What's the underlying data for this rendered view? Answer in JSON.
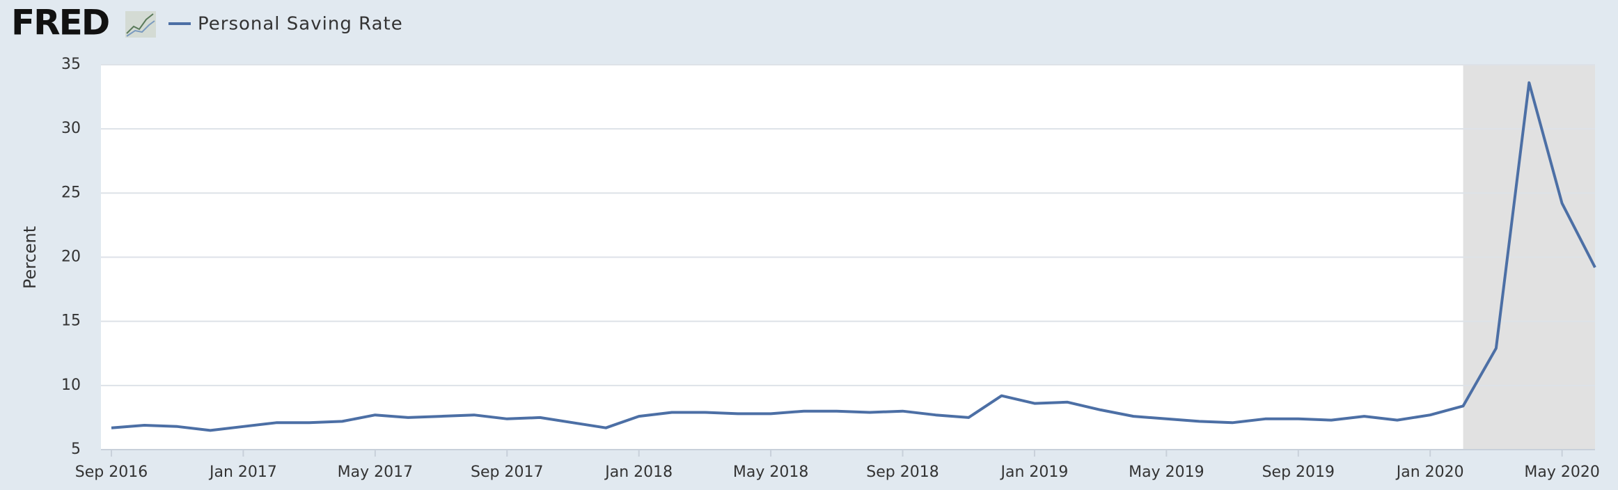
{
  "logo": "FRED",
  "chart_data": {
    "type": "line",
    "title": "Personal Saving Rate",
    "y_label": "Percent",
    "x": [
      "2016-09",
      "2016-10",
      "2016-11",
      "2016-12",
      "2017-01",
      "2017-02",
      "2017-03",
      "2017-04",
      "2017-05",
      "2017-06",
      "2017-07",
      "2017-08",
      "2017-09",
      "2017-10",
      "2017-11",
      "2017-12",
      "2018-01",
      "2018-02",
      "2018-03",
      "2018-04",
      "2018-05",
      "2018-06",
      "2018-07",
      "2018-08",
      "2018-09",
      "2018-10",
      "2018-11",
      "2018-12",
      "2019-01",
      "2019-02",
      "2019-03",
      "2019-04",
      "2019-05",
      "2019-06",
      "2019-07",
      "2019-08",
      "2019-09",
      "2019-10",
      "2019-11",
      "2019-12",
      "2020-01",
      "2020-02",
      "2020-03",
      "2020-04",
      "2020-05",
      "2020-06"
    ],
    "series": [
      {
        "name": "Personal Saving Rate",
        "color": "#4c6fa5",
        "values": [
          6.7,
          6.9,
          6.8,
          6.5,
          6.8,
          7.1,
          7.1,
          7.2,
          7.7,
          7.5,
          7.6,
          7.7,
          7.4,
          7.5,
          7.1,
          6.7,
          7.6,
          7.9,
          7.9,
          7.8,
          7.8,
          8.0,
          8.0,
          7.9,
          8.0,
          7.7,
          7.5,
          9.2,
          8.6,
          8.7,
          8.1,
          7.6,
          7.4,
          7.2,
          7.1,
          7.4,
          7.4,
          7.3,
          7.6,
          7.3,
          7.7,
          8.4,
          12.9,
          33.6,
          24.2,
          19.2
        ]
      }
    ],
    "ylim": [
      5,
      35
    ],
    "yticks": [
      5,
      10,
      15,
      20,
      25,
      30,
      35
    ],
    "xticks": [
      {
        "value": "2016-09",
        "label": "Sep 2016"
      },
      {
        "value": "2017-01",
        "label": "Jan 2017"
      },
      {
        "value": "2017-05",
        "label": "May 2017"
      },
      {
        "value": "2017-09",
        "label": "Sep 2017"
      },
      {
        "value": "2018-01",
        "label": "Jan 2018"
      },
      {
        "value": "2018-05",
        "label": "May 2018"
      },
      {
        "value": "2018-09",
        "label": "Sep 2018"
      },
      {
        "value": "2019-01",
        "label": "Jan 2019"
      },
      {
        "value": "2019-05",
        "label": "May 2019"
      },
      {
        "value": "2019-09",
        "label": "Sep 2019"
      },
      {
        "value": "2020-01",
        "label": "Jan 2020"
      },
      {
        "value": "2020-05",
        "label": "May 2020"
      }
    ],
    "shading": {
      "start": "2020-02",
      "end": "2020-06",
      "color": "#e1e1e1"
    },
    "grid": true
  }
}
